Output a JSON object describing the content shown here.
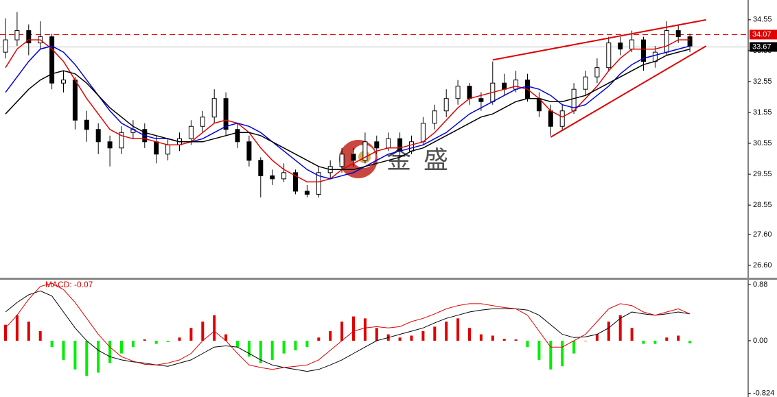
{
  "chart_data": {
    "type": "candlestick",
    "ylim": [
      26.2,
      35.19
    ],
    "yticks": [
      34.55,
      33.55,
      32.55,
      31.55,
      30.55,
      29.55,
      28.55,
      {
        "value": 27.6,
        "label": "27.60"
      },
      {
        "value": 26.6,
        "label": "26.60"
      }
    ],
    "candles": [
      [
        33.5,
        34.6,
        33.3,
        33.9
      ],
      [
        33.9,
        34.8,
        33.7,
        34.2
      ],
      [
        34.2,
        34.4,
        33.4,
        33.8
      ],
      [
        33.8,
        34.5,
        33.6,
        34.0
      ],
      [
        34.0,
        34.1,
        32.3,
        32.5
      ],
      [
        32.5,
        32.9,
        32.2,
        32.6
      ],
      [
        32.6,
        32.7,
        31.0,
        31.3
      ],
      [
        31.3,
        31.6,
        30.6,
        31.0
      ],
      [
        31.0,
        31.2,
        30.2,
        30.6
      ],
      [
        30.6,
        30.8,
        29.8,
        30.4
      ],
      [
        30.4,
        31.1,
        30.2,
        30.9
      ],
      [
        30.9,
        31.3,
        30.7,
        31.0
      ],
      [
        31.0,
        31.2,
        30.4,
        30.6
      ],
      [
        30.6,
        30.8,
        29.9,
        30.2
      ],
      [
        30.2,
        30.7,
        30.0,
        30.5
      ],
      [
        30.5,
        30.9,
        30.3,
        30.7
      ],
      [
        30.7,
        31.3,
        30.5,
        31.1
      ],
      [
        31.1,
        31.6,
        30.9,
        31.4
      ],
      [
        31.4,
        32.3,
        31.2,
        32.0
      ],
      [
        32.0,
        32.2,
        30.8,
        31.0
      ],
      [
        31.0,
        31.2,
        30.4,
        30.6
      ],
      [
        30.6,
        30.8,
        29.8,
        30.0
      ],
      [
        30.0,
        30.1,
        28.8,
        29.5
      ],
      [
        29.5,
        29.7,
        29.2,
        29.4
      ],
      [
        29.4,
        29.9,
        29.3,
        29.6
      ],
      [
        29.6,
        29.7,
        28.9,
        29.0
      ],
      [
        29.0,
        29.2,
        28.8,
        28.9
      ],
      [
        28.9,
        29.8,
        28.8,
        29.6
      ],
      [
        29.6,
        30.0,
        29.4,
        29.8
      ],
      [
        29.8,
        30.4,
        29.6,
        30.2
      ],
      [
        30.2,
        30.4,
        29.8,
        30.0
      ],
      [
        30.0,
        30.9,
        29.9,
        30.6
      ],
      [
        30.6,
        30.8,
        30.2,
        30.4
      ],
      [
        30.4,
        30.9,
        30.3,
        30.7
      ],
      [
        30.7,
        30.9,
        30.1,
        30.3
      ],
      [
        30.3,
        30.8,
        30.2,
        30.6
      ],
      [
        30.6,
        31.4,
        30.5,
        31.2
      ],
      [
        31.2,
        31.8,
        31.0,
        31.6
      ],
      [
        31.6,
        32.3,
        31.4,
        32.0
      ],
      [
        32.0,
        32.6,
        31.8,
        32.4
      ],
      [
        32.4,
        32.5,
        31.8,
        32.0
      ],
      [
        32.0,
        32.2,
        31.6,
        31.9
      ],
      [
        31.9,
        33.2,
        31.8,
        32.5
      ],
      [
        32.5,
        32.8,
        32.1,
        32.3
      ],
      [
        32.3,
        32.9,
        32.2,
        32.6
      ],
      [
        32.6,
        32.8,
        31.9,
        32.0
      ],
      [
        32.0,
        32.2,
        31.4,
        31.6
      ],
      [
        31.6,
        31.8,
        30.8,
        31.1
      ],
      [
        31.1,
        31.8,
        31.0,
        31.6
      ],
      [
        31.6,
        32.5,
        31.5,
        32.3
      ],
      [
        32.3,
        32.9,
        32.1,
        32.7
      ],
      [
        32.7,
        33.3,
        32.5,
        33.0
      ],
      [
        33.0,
        34.0,
        32.9,
        33.8
      ],
      [
        33.8,
        34.0,
        33.4,
        33.6
      ],
      [
        33.6,
        34.2,
        33.5,
        33.9
      ],
      [
        33.9,
        34.0,
        32.9,
        33.2
      ],
      [
        33.2,
        33.7,
        33.0,
        33.5
      ],
      [
        33.5,
        34.5,
        33.4,
        34.2
      ],
      [
        34.2,
        34.4,
        33.8,
        34.0
      ],
      [
        34.0,
        34.1,
        33.5,
        33.7
      ]
    ],
    "averages": [
      {
        "color": "#e00000",
        "values": [
          33.0,
          33.6,
          33.9,
          33.9,
          33.6,
          33.2,
          32.6,
          32.0,
          31.5,
          31.0,
          30.8,
          30.7,
          30.7,
          30.6,
          30.5,
          30.5,
          30.6,
          30.9,
          31.2,
          31.3,
          31.2,
          30.9,
          30.4,
          30.0,
          29.7,
          29.5,
          29.3,
          29.3,
          29.4,
          29.7,
          29.9,
          30.1,
          30.3,
          30.4,
          30.4,
          30.5,
          30.6,
          30.9,
          31.3,
          31.7,
          32.0,
          32.1,
          32.2,
          32.3,
          32.4,
          32.3,
          32.0,
          31.6,
          31.4,
          31.6,
          32.0,
          32.4,
          32.9,
          33.3,
          33.6,
          33.6,
          33.6,
          33.7,
          33.9,
          33.9
        ]
      },
      {
        "color": "#0000e0",
        "values": [
          32.2,
          32.7,
          33.2,
          33.6,
          33.7,
          33.5,
          33.1,
          32.6,
          32.1,
          31.6,
          31.2,
          31.0,
          30.8,
          30.7,
          30.7,
          30.6,
          30.6,
          30.7,
          30.9,
          31.1,
          31.2,
          31.1,
          30.9,
          30.6,
          30.3,
          30.0,
          29.7,
          29.5,
          29.4,
          29.5,
          29.6,
          29.8,
          30.0,
          30.2,
          30.3,
          30.4,
          30.5,
          30.7,
          30.9,
          31.2,
          31.5,
          31.7,
          31.9,
          32.1,
          32.3,
          32.4,
          32.3,
          32.1,
          31.8,
          31.7,
          31.8,
          32.1,
          32.4,
          32.8,
          33.1,
          33.3,
          33.4,
          33.5,
          33.6,
          33.7
        ]
      },
      {
        "color": "#000000",
        "values": [
          31.5,
          31.9,
          32.3,
          32.6,
          32.8,
          32.9,
          32.8,
          32.5,
          32.1,
          31.7,
          31.4,
          31.1,
          30.9,
          30.8,
          30.7,
          30.6,
          30.6,
          30.6,
          30.7,
          30.8,
          30.9,
          30.9,
          30.8,
          30.6,
          30.4,
          30.2,
          30.0,
          29.8,
          29.7,
          29.7,
          29.7,
          29.8,
          29.9,
          30.0,
          30.1,
          30.3,
          30.4,
          30.6,
          30.8,
          31.0,
          31.2,
          31.4,
          31.5,
          31.7,
          31.9,
          32.0,
          32.0,
          31.9,
          31.9,
          32.0,
          32.1,
          32.3,
          32.5,
          32.7,
          32.9,
          33.1,
          33.2,
          33.4,
          33.5,
          33.6
        ]
      }
    ],
    "trendlines": [
      {
        "color": "#e00000",
        "x": [
          42,
          60.4
        ],
        "y": [
          33.25,
          34.55
        ]
      },
      {
        "color": "#e00000",
        "x": [
          47,
          60.4
        ],
        "y": [
          30.75,
          33.7
        ]
      }
    ],
    "levels": [
      {
        "value": 34.07,
        "label": "34.07",
        "color": "#e00000",
        "dashed": true
      },
      {
        "value": 33.67,
        "label": "33.67",
        "color": "#000000",
        "dashed": false
      }
    ],
    "watermark": "金盛",
    "macd": {
      "label": "MACD: -0.07",
      "ylim": [
        -0.86,
        0.955
      ],
      "yticks": [
        0.88,
        {
          "value": 0,
          "label": "0.00"
        },
        -0.824
      ],
      "up_color": "#e00000",
      "down_color": "#00ee00",
      "histogram": [
        0.25,
        0.4,
        0.3,
        0.15,
        -0.1,
        -0.3,
        -0.45,
        -0.55,
        -0.5,
        -0.35,
        -0.2,
        -0.1,
        0.02,
        -0.05,
        -0.02,
        0.05,
        0.2,
        0.3,
        0.4,
        0.1,
        -0.1,
        -0.25,
        -0.35,
        -0.3,
        -0.2,
        -0.15,
        -0.1,
        0.05,
        0.15,
        0.3,
        0.38,
        0.35,
        0.2,
        0.1,
        0.05,
        0.08,
        0.15,
        0.22,
        0.3,
        0.35,
        0.2,
        0.1,
        0.08,
        0.03,
        0.02,
        -0.1,
        -0.3,
        -0.45,
        -0.4,
        -0.2,
        0.0,
        0.1,
        0.3,
        0.4,
        0.2,
        -0.05,
        -0.05,
        0.05,
        0.08,
        -0.04
      ],
      "lines": [
        {
          "color": "#000000",
          "values": [
            0.45,
            0.6,
            0.72,
            0.78,
            0.7,
            0.45,
            0.2,
            0.0,
            -0.15,
            -0.25,
            -0.3,
            -0.33,
            -0.35,
            -0.38,
            -0.4,
            -0.35,
            -0.3,
            -0.2,
            -0.1,
            -0.08,
            -0.1,
            -0.2,
            -0.3,
            -0.38,
            -0.42,
            -0.45,
            -0.48,
            -0.45,
            -0.38,
            -0.3,
            -0.2,
            -0.1,
            0.0,
            0.05,
            0.1,
            0.15,
            0.2,
            0.28,
            0.35,
            0.4,
            0.45,
            0.48,
            0.5,
            0.5,
            0.5,
            0.48,
            0.4,
            0.25,
            0.1,
            0.05,
            0.06,
            0.1,
            0.2,
            0.35,
            0.45,
            0.42,
            0.4,
            0.42,
            0.45,
            0.42
          ]
        },
        {
          "color": "#e00000",
          "values": [
            0.2,
            0.4,
            0.65,
            0.85,
            0.9,
            0.8,
            0.6,
            0.35,
            0.1,
            -0.1,
            -0.25,
            -0.32,
            -0.37,
            -0.38,
            -0.35,
            -0.3,
            -0.2,
            0.0,
            0.15,
            0.0,
            -0.2,
            -0.38,
            -0.42,
            -0.45,
            -0.42,
            -0.4,
            -0.38,
            -0.3,
            -0.15,
            0.0,
            0.15,
            0.2,
            0.22,
            0.2,
            0.22,
            0.3,
            0.35,
            0.42,
            0.5,
            0.55,
            0.58,
            0.58,
            0.55,
            0.52,
            0.5,
            0.4,
            0.15,
            -0.1,
            -0.1,
            0.0,
            0.1,
            0.3,
            0.5,
            0.58,
            0.55,
            0.45,
            0.4,
            0.45,
            0.5,
            0.42
          ]
        }
      ]
    }
  }
}
